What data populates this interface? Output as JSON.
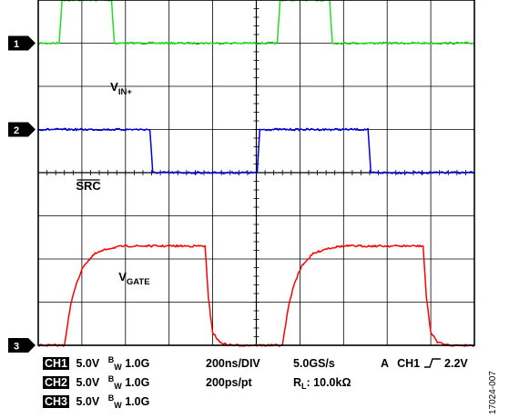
{
  "chart_data": {
    "type": "line",
    "title": "",
    "xlabel": "",
    "ylabel": "",
    "grid": true,
    "x_unit": "ns",
    "xlim": [
      0,
      2000
    ],
    "ylim": [
      -20,
      20
    ],
    "series": [
      {
        "name": "V",
        "name_sub": "IN+",
        "channel": "1",
        "color": "#22dd22",
        "ground_div": 1.0,
        "x": [
          0,
          96,
          109,
          336,
          349,
          1096,
          1109,
          1336,
          1349,
          2000
        ],
        "y": [
          0,
          0,
          5.0,
          5.0,
          0,
          0,
          5.0,
          5.0,
          0,
          0
        ]
      },
      {
        "name": "SRC",
        "overline": true,
        "channel": "2",
        "color": "#0000dd",
        "ground_div": 3.0,
        "x": [
          0,
          512,
          525,
          1004,
          1016,
          1512,
          1525,
          2000
        ],
        "y": [
          0,
          0,
          -5.0,
          -5.0,
          0,
          0,
          -5.0,
          -5.0
        ]
      },
      {
        "name": "V",
        "name_sub": "GATE",
        "channel": "3",
        "color": "#ff0000",
        "ground_div": 8.0,
        "x": [
          0,
          120,
          135,
          150,
          175,
          210,
          260,
          320,
          380,
          420,
          765,
          780,
          800,
          830,
          860,
          900,
          1000,
          1120,
          1135,
          1150,
          1175,
          1210,
          1260,
          1320,
          1380,
          1420,
          1765,
          1780,
          1800,
          1830,
          1860,
          1900,
          2000
        ],
        "y": [
          0,
          0,
          2.5,
          4.8,
          7.2,
          9.3,
          10.6,
          11.2,
          11.45,
          11.5,
          11.5,
          5.5,
          1.5,
          0.4,
          0.1,
          0,
          0,
          0,
          2.5,
          4.8,
          7.2,
          9.3,
          10.6,
          11.2,
          11.45,
          11.5,
          11.5,
          5.5,
          1.5,
          0.4,
          0.1,
          0,
          0
        ]
      }
    ],
    "trace_labels": [
      {
        "main": "V",
        "sub": "IN+",
        "x_ns": 380,
        "y_div": 2.1
      },
      {
        "main": "SRC",
        "overline": true,
        "x_ns": 230,
        "y_div": 4.4
      },
      {
        "main": "V",
        "sub": "GATE",
        "x_ns": 440,
        "y_div": 6.5
      }
    ]
  },
  "settings": {
    "ch1": {
      "label": "CH1",
      "volts": "5.0V",
      "bw_main": "B",
      "bw_sub": "W",
      "bw_val": "1.0G"
    },
    "ch2": {
      "label": "CH2",
      "volts": "5.0V",
      "bw_main": "B",
      "bw_sub": "W",
      "bw_val": "1.0G"
    },
    "ch3": {
      "label": "CH3",
      "volts": "5.0V",
      "bw_main": "B",
      "bw_sub": "W",
      "bw_val": "1.0G"
    },
    "timebase": "200ns/DIV",
    "resolution": "200ps/pt",
    "sample_rate": "5.0GS/s",
    "load_main": "R",
    "load_sub": "L",
    "load_val": ": 10.0kΩ",
    "trigger_mode": "A",
    "trigger_source": "CH1",
    "trigger_level": "2.2V"
  },
  "figure_id": "17024-007"
}
